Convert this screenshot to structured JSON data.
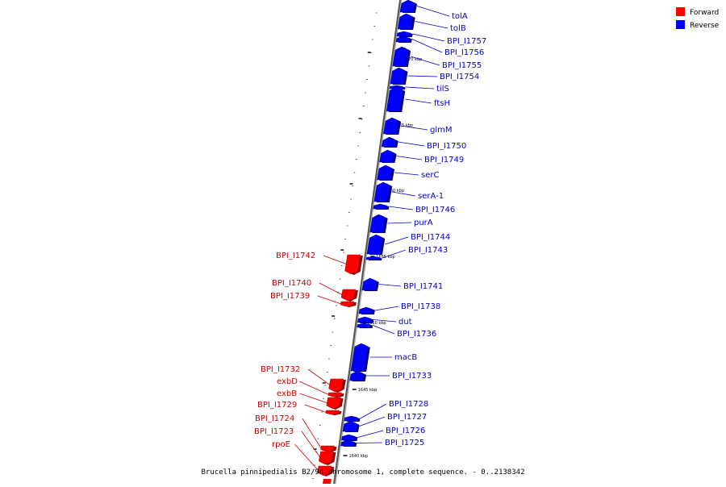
{
  "legend": {
    "items": [
      {
        "label": "Forward",
        "color": "#ff0000"
      },
      {
        "label": "Reverse",
        "color": "#0000ff"
      }
    ]
  },
  "caption": "Brucella pinnipedialis B2/94 chromosome 1, complete sequence. - 0..2138342",
  "colors": {
    "forward": "#ff0000",
    "reverse": "#0000ff",
    "forward_label": "#cc0000",
    "reverse_label": "#0000cc",
    "axis": "#999999"
  },
  "kbp_marks": [
    "1670 kbp",
    "1665 kbp",
    "1660 kbp",
    "1655 kbp",
    "1650 kbp",
    "1645 kbp",
    "1640 kbp"
  ],
  "genes": [
    {
      "name": "tolA",
      "strand": "reverse"
    },
    {
      "name": "tolB",
      "strand": "reverse"
    },
    {
      "name": "BPI_I1757",
      "strand": "reverse"
    },
    {
      "name": "BPI_I1756",
      "strand": "reverse"
    },
    {
      "name": "BPI_I1755",
      "strand": "reverse"
    },
    {
      "name": "BPI_I1754",
      "strand": "reverse"
    },
    {
      "name": "tilS",
      "strand": "reverse"
    },
    {
      "name": "ftsH",
      "strand": "reverse"
    },
    {
      "name": "glmM",
      "strand": "reverse"
    },
    {
      "name": "BPI_I1750",
      "strand": "reverse"
    },
    {
      "name": "BPI_I1749",
      "strand": "reverse"
    },
    {
      "name": "serC",
      "strand": "reverse"
    },
    {
      "name": "serA-1",
      "strand": "reverse"
    },
    {
      "name": "BPI_I1746",
      "strand": "reverse"
    },
    {
      "name": "purA",
      "strand": "reverse"
    },
    {
      "name": "BPI_I1744",
      "strand": "reverse"
    },
    {
      "name": "BPI_I1743",
      "strand": "reverse"
    },
    {
      "name": "BPI_I1742",
      "strand": "forward"
    },
    {
      "name": "BPI_I1741",
      "strand": "reverse"
    },
    {
      "name": "BPI_I1740",
      "strand": "forward"
    },
    {
      "name": "BPI_I1739",
      "strand": "forward"
    },
    {
      "name": "BPI_I1738",
      "strand": "reverse"
    },
    {
      "name": "dut",
      "strand": "reverse"
    },
    {
      "name": "BPI_I1736",
      "strand": "reverse"
    },
    {
      "name": "macB",
      "strand": "reverse"
    },
    {
      "name": "BPI_I1733",
      "strand": "reverse"
    },
    {
      "name": "BPI_I1732",
      "strand": "forward"
    },
    {
      "name": "exbD",
      "strand": "forward"
    },
    {
      "name": "exbB",
      "strand": "forward"
    },
    {
      "name": "BPI_I1729",
      "strand": "forward"
    },
    {
      "name": "BPI_I1728",
      "strand": "reverse"
    },
    {
      "name": "BPI_I1727",
      "strand": "reverse"
    },
    {
      "name": "BPI_I1726",
      "strand": "reverse"
    },
    {
      "name": "BPI_I1725",
      "strand": "reverse"
    },
    {
      "name": "BPI_I1724",
      "strand": "forward"
    },
    {
      "name": "BPI_I1723",
      "strand": "forward"
    },
    {
      "name": "rpoE",
      "strand": "forward"
    }
  ]
}
